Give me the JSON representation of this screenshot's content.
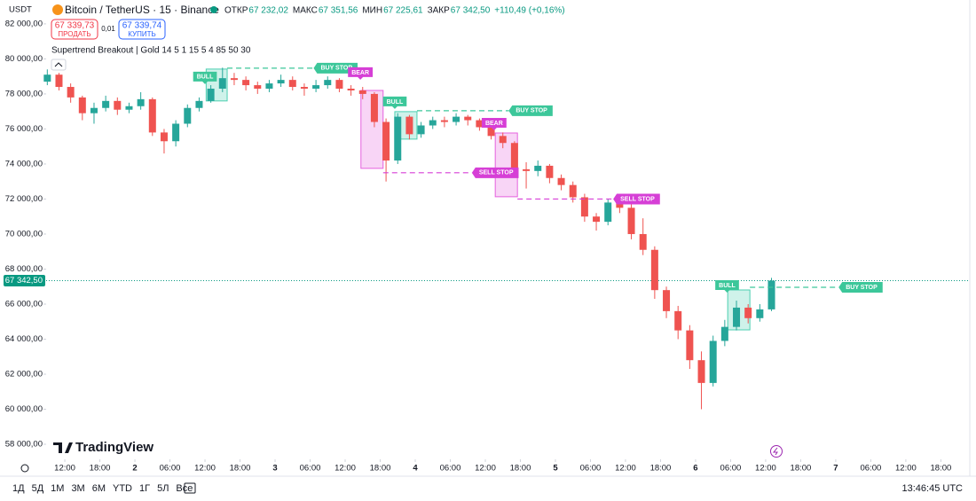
{
  "ui": {
    "unit": "USDT",
    "title": "Bitcoin / TetherUS · 15 · Binance",
    "ohlc": [
      {
        "label": "ОТКР",
        "value": "67 232,02"
      },
      {
        "label": "МАКС",
        "value": "67 351,56"
      },
      {
        "label": "МИН",
        "value": "67 225,61"
      },
      {
        "label": "ЗАКР",
        "value": "67 342,50"
      }
    ],
    "change": "+110,49 (+0,16%)",
    "sell": {
      "price": "67 339,73",
      "label": "ПРОДАТЬ"
    },
    "spread": "0,01",
    "buy": {
      "price": "67 339,74",
      "label": "КУПИТЬ"
    },
    "indicator": "Supertrend Breakout | Gold 14 5 1 15 5 4 85 50 30",
    "logo": "TradingView",
    "ranges": [
      "1Д",
      "5Д",
      "1М",
      "3М",
      "6М",
      "YTD",
      "1Г",
      "5Л",
      "Все"
    ],
    "clock": "13:46:45 UTC"
  },
  "chart_data": {
    "type": "candlestick",
    "up_color": "#26a69a",
    "down_color": "#ef5350",
    "x": [
      9,
      11,
      13,
      15,
      17,
      19,
      21,
      23,
      25,
      27,
      29,
      31,
      33,
      35,
      37,
      39,
      41,
      43,
      45,
      47,
      49,
      51,
      53,
      55,
      57,
      59,
      61,
      63,
      65,
      67,
      69,
      71,
      73,
      75,
      77,
      79,
      81,
      83,
      85,
      87,
      89,
      91,
      93,
      95,
      97,
      99,
      101,
      103,
      105,
      107,
      109,
      111,
      113,
      115,
      117,
      119,
      121,
      123,
      125,
      127,
      129,
      131,
      133
    ],
    "open": [
      78700,
      79100,
      78400,
      77800,
      76900,
      77200,
      77600,
      77100,
      77300,
      77700,
      75800,
      75300,
      76300,
      77200,
      77600,
      78300,
      78900,
      78800,
      78500,
      78300,
      78600,
      78800,
      78400,
      78300,
      78500,
      78800,
      78300,
      78200,
      78000,
      76400,
      74200,
      76700,
      75700,
      76200,
      76500,
      76400,
      76700,
      76500,
      76100,
      75600,
      75200,
      73700,
      73600,
      73900,
      73200,
      72800,
      72100,
      71000,
      70700,
      71800,
      71500,
      70000,
      69100,
      66800,
      65600,
      64500,
      62800,
      61500,
      63900,
      64700,
      65800,
      65200,
      65700
    ],
    "high": [
      79400,
      79200,
      78600,
      77900,
      77500,
      77900,
      77800,
      77500,
      78100,
      77800,
      76000,
      76500,
      77400,
      77800,
      78500,
      79500,
      79200,
      79000,
      78700,
      78800,
      79100,
      79000,
      78600,
      78800,
      79000,
      78900,
      78500,
      78400,
      78100,
      76600,
      76900,
      76800,
      76400,
      76700,
      76700,
      76900,
      76800,
      76600,
      76300,
      75800,
      75300,
      74100,
      74200,
      74000,
      73400,
      73000,
      72300,
      71200,
      72000,
      72100,
      71700,
      70900,
      69300,
      67000,
      65900,
      64800,
      63300,
      64200,
      65100,
      66200,
      66000,
      66000,
      67500
    ],
    "low": [
      78500,
      78200,
      77500,
      76500,
      76300,
      77000,
      76800,
      76900,
      77100,
      75600,
      74600,
      75000,
      76100,
      77000,
      77500,
      78100,
      78500,
      78200,
      78000,
      78100,
      78400,
      78200,
      77900,
      78100,
      78300,
      78100,
      77900,
      77700,
      76100,
      73000,
      74000,
      75400,
      75500,
      76000,
      76100,
      76200,
      76200,
      75900,
      75400,
      74900,
      73400,
      72600,
      73300,
      72900,
      72500,
      71800,
      70700,
      70200,
      70500,
      71200,
      69700,
      68800,
      66300,
      65200,
      64000,
      62300,
      60000,
      61300,
      63600,
      64500,
      64900,
      65000,
      65600
    ],
    "close": [
      79100,
      78400,
      77800,
      76900,
      77200,
      77600,
      77100,
      77300,
      77700,
      75800,
      75300,
      76300,
      77200,
      77600,
      78300,
      78900,
      78800,
      78500,
      78300,
      78600,
      78800,
      78400,
      78300,
      78500,
      78800,
      78300,
      78200,
      78000,
      76400,
      74200,
      76700,
      75700,
      76200,
      76500,
      76400,
      76700,
      76500,
      76100,
      75600,
      75200,
      73700,
      73600,
      73900,
      73200,
      72800,
      72100,
      71000,
      70700,
      71800,
      71500,
      70000,
      69100,
      66800,
      65600,
      64500,
      62800,
      61500,
      63900,
      64700,
      65800,
      65200,
      65700,
      67342.5
    ],
    "xlim": [
      8.8,
      166.8
    ],
    "xticks": [
      {
        "value": 12,
        "label": "12:00"
      },
      {
        "value": 18,
        "label": "18:00"
      },
      {
        "value": 24,
        "label": "2"
      },
      {
        "value": 30,
        "label": "06:00"
      },
      {
        "value": 36,
        "label": "12:00"
      },
      {
        "value": 42,
        "label": "18:00"
      },
      {
        "value": 48,
        "label": "3"
      },
      {
        "value": 54,
        "label": "06:00"
      },
      {
        "value": 60,
        "label": "12:00"
      },
      {
        "value": 66,
        "label": "18:00"
      },
      {
        "value": 72,
        "label": "4"
      },
      {
        "value": 78,
        "label": "06:00"
      },
      {
        "value": 84,
        "label": "12:00"
      },
      {
        "value": 90,
        "label": "18:00"
      },
      {
        "value": 96,
        "label": "5"
      },
      {
        "value": 102,
        "label": "06:00"
      },
      {
        "value": 108,
        "label": "12:00"
      },
      {
        "value": 114,
        "label": "18:00"
      },
      {
        "value": 120,
        "label": "6"
      },
      {
        "value": 126,
        "label": "06:00"
      },
      {
        "value": 132,
        "label": "12:00"
      },
      {
        "value": 138,
        "label": "18:00"
      },
      {
        "value": 144,
        "label": "7"
      },
      {
        "value": 150,
        "label": "06:00"
      },
      {
        "value": 156,
        "label": "12:00"
      },
      {
        "value": 162,
        "label": "18:00"
      }
    ],
    "ylim": [
      57140,
      82350
    ],
    "yticks": [
      {
        "value": 58000,
        "label": "58 000,00"
      },
      {
        "value": 60000,
        "label": "60 000,00"
      },
      {
        "value": 62000,
        "label": "62 000,00"
      },
      {
        "value": 64000,
        "label": "64 000,00"
      },
      {
        "value": 66000,
        "label": "66 000,00"
      },
      {
        "value": 68000,
        "label": "68 000,00"
      },
      {
        "value": 70000,
        "label": "70 000,00"
      },
      {
        "value": 72000,
        "label": "72 000,00"
      },
      {
        "value": 74000,
        "label": "74 000,00"
      },
      {
        "value": 76000,
        "label": "76 000,00"
      },
      {
        "value": 78000,
        "label": "78 000,00"
      },
      {
        "value": 80000,
        "label": "80 000,00"
      },
      {
        "value": 82000,
        "label": "82 000,00"
      }
    ],
    "last_price": {
      "value": 67342.5,
      "label": "67 342,50"
    },
    "boxes": [
      {
        "x0": 36.2,
        "x1": 39.8,
        "y0": 77600,
        "y1": 79420,
        "color": "#26c6a0"
      },
      {
        "x0": 62.7,
        "x1": 66.5,
        "y0": 73750,
        "y1": 78200,
        "color": "#e040d8"
      },
      {
        "x0": 68.5,
        "x1": 72.3,
        "y0": 75420,
        "y1": 76990,
        "color": "#26c6a0"
      },
      {
        "x0": 85.7,
        "x1": 89.5,
        "y0": 72130,
        "y1": 75770,
        "color": "#e040d8"
      },
      {
        "x0": 125.5,
        "x1": 129.3,
        "y0": 64530,
        "y1": 66810,
        "color": "#26c6a0"
      }
    ],
    "signals": [
      {
        "text": "BULL",
        "x": 36,
        "y": 78560,
        "color": "#3cc79a"
      },
      {
        "text": "BEAR",
        "x": 62.6,
        "y": 78810,
        "color": "#d63fd6"
      },
      {
        "text": "BULL",
        "x": 68.5,
        "y": 77140,
        "color": "#3cc79a"
      },
      {
        "text": "BEAR",
        "x": 85.5,
        "y": 75920,
        "color": "#d63fd6"
      },
      {
        "text": "BULL",
        "x": 125.4,
        "y": 66660,
        "color": "#3cc79a"
      }
    ],
    "stops": [
      {
        "text": "BUY STOP",
        "x0": 39.8,
        "x1": 54.6,
        "y": 79470,
        "color": "#3cc79a"
      },
      {
        "text": "SELL STOP",
        "x0": 66.5,
        "x1": 81.7,
        "y": 73500,
        "color": "#d63fd6"
      },
      {
        "text": "BUY STOP",
        "x0": 72.3,
        "x1": 88,
        "y": 77040,
        "color": "#3cc79a"
      },
      {
        "text": "SELL STOP",
        "x0": 89.5,
        "x1": 105.9,
        "y": 72000,
        "color": "#d63fd6"
      },
      {
        "text": "BUY STOP",
        "x0": 129.3,
        "x1": 144.5,
        "y": 66960,
        "color": "#3cc79a"
      }
    ]
  }
}
